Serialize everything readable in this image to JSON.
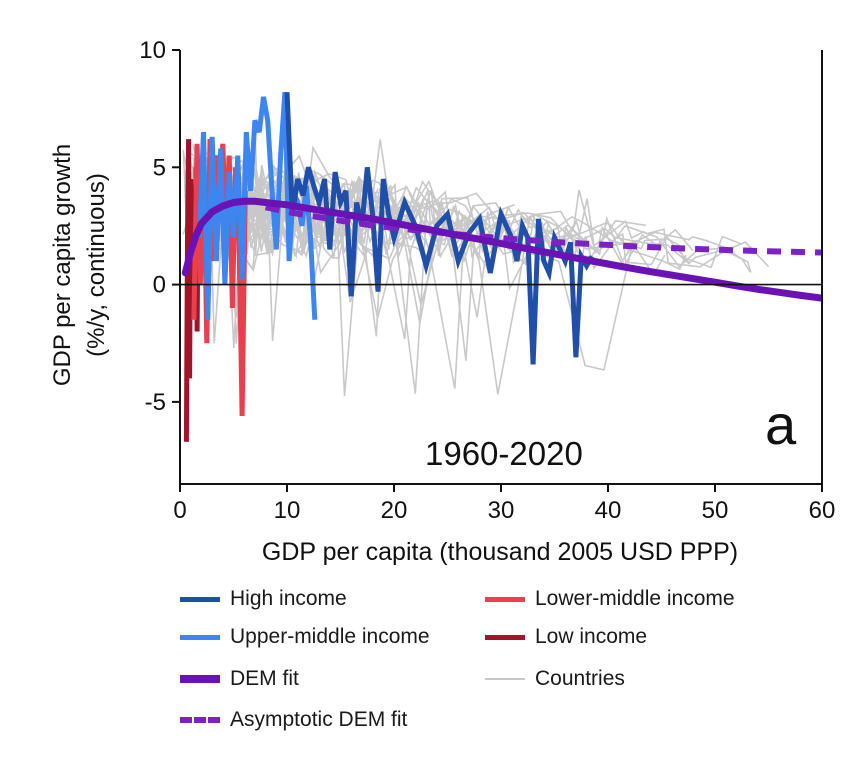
{
  "chart_data": {
    "type": "line",
    "title": "",
    "panel_label": "a",
    "period_label": "1960-2020",
    "xlabel": "GDP per capita (thousand 2005 USD PPP)",
    "ylabel": "GDP per capita growth",
    "ylabel_sub": "(%/y, continuous)",
    "xlim": [
      0,
      60
    ],
    "ylim": [
      -8.5,
      10
    ],
    "xticks": [
      0,
      10,
      20,
      30,
      40,
      50,
      60
    ],
    "yticks": [
      -5,
      0,
      5,
      10
    ],
    "xtick_labels": [
      "0",
      "10",
      "20",
      "30",
      "40",
      "50",
      "60"
    ],
    "ytick_labels": [
      "-5",
      "0",
      "5",
      "10"
    ],
    "grid": false,
    "zero_line": true,
    "legend_position": "below",
    "colors": {
      "high": "#1f4fa8",
      "upper_middle": "#3d86ef",
      "lower_middle": "#e8404e",
      "low": "#a01528",
      "dem": "#6a12b4",
      "asymptotic": "#7a22c2",
      "countries": "#c8c8c8"
    },
    "legend": [
      {
        "key": "high",
        "label": "High income",
        "style": "solid"
      },
      {
        "key": "lower_middle",
        "label": "Lower-middle income",
        "style": "solid"
      },
      {
        "key": "upper_middle",
        "label": "Upper-middle income",
        "style": "solid"
      },
      {
        "key": "low",
        "label": "Low income",
        "style": "solid"
      },
      {
        "key": "dem",
        "label": "DEM fit",
        "style": "thick"
      },
      {
        "key": "countries",
        "label": "Countries",
        "style": "thin"
      },
      {
        "key": "asymptotic",
        "label": "Asymptotic DEM fit",
        "style": "dashed"
      }
    ],
    "series": [
      {
        "name": "Low income",
        "key": "low",
        "x": [
          0.6,
          0.7,
          0.8,
          0.9,
          1.0,
          1.1,
          1.2,
          1.3,
          1.4,
          1.5,
          1.6,
          1.7
        ],
        "y": [
          -6.7,
          2.0,
          6.2,
          -4.0,
          4.5,
          1.5,
          -1.0,
          3.5,
          0.5,
          5.0,
          -2.0,
          4.0
        ]
      },
      {
        "name": "Lower-middle income",
        "key": "lower_middle",
        "x": [
          1.3,
          1.6,
          1.9,
          2.2,
          2.5,
          2.8,
          3.1,
          3.4,
          3.7,
          4.0,
          4.3,
          4.6,
          4.9,
          5.2,
          5.5,
          5.8,
          6.1
        ],
        "y": [
          -1.5,
          6.0,
          0.0,
          5.8,
          -2.5,
          6.2,
          1.0,
          5.5,
          3.5,
          6.0,
          2.0,
          5.5,
          -1.0,
          5.0,
          2.5,
          -5.6,
          4.0
        ]
      },
      {
        "name": "Upper-middle income",
        "key": "upper_middle",
        "x": [
          1.8,
          2.2,
          2.6,
          3.0,
          3.4,
          3.8,
          4.2,
          4.6,
          5.0,
          5.4,
          5.8,
          6.2,
          6.6,
          7.0,
          7.4,
          7.8,
          8.2,
          8.6,
          9.0,
          9.4,
          9.8,
          10.2,
          10.6,
          11.0,
          11.4,
          11.8,
          12.2,
          12.6
        ],
        "y": [
          2.0,
          6.5,
          -1.5,
          6.3,
          1.0,
          5.8,
          0.0,
          4.8,
          2.0,
          5.5,
          0.2,
          6.5,
          4.0,
          7.0,
          6.5,
          8.0,
          7.0,
          4.0,
          1.5,
          5.5,
          8.2,
          1.0,
          4.0,
          3.5,
          2.5,
          4.2,
          2.0,
          -1.5
        ]
      },
      {
        "name": "High income",
        "key": "high",
        "x": [
          10.0,
          10.5,
          11.0,
          11.5,
          12.0,
          12.5,
          13.0,
          13.5,
          14.0,
          14.5,
          15.0,
          15.5,
          16.0,
          16.5,
          17.0,
          17.5,
          18.0,
          18.5,
          19.0,
          19.5,
          20.0,
          21.0,
          22.0,
          23.0,
          24.0,
          25.0,
          26.0,
          27.0,
          28.0,
          29.0,
          30.0,
          31.0,
          31.5,
          32.0,
          32.5,
          33.0,
          33.5,
          34.0,
          34.5,
          35.0,
          35.5,
          36.0,
          36.5,
          37.0,
          37.5,
          38.0,
          38.5
        ],
        "y": [
          8.2,
          3.0,
          4.5,
          3.8,
          5.0,
          4.2,
          3.5,
          4.5,
          1.5,
          4.8,
          3.5,
          4.0,
          -0.5,
          3.5,
          2.5,
          5.0,
          3.0,
          -0.3,
          4.5,
          3.0,
          2.0,
          3.5,
          2.5,
          0.8,
          2.5,
          3.0,
          1.0,
          2.2,
          2.8,
          0.5,
          3.0,
          2.0,
          1.0,
          2.5,
          2.0,
          -3.4,
          2.8,
          1.0,
          0.5,
          2.0,
          1.5,
          1.0,
          1.8,
          -3.1,
          1.2,
          0.8,
          1.2
        ]
      }
    ],
    "dem_fit": {
      "x": [
        0.5,
        1,
        1.5,
        2,
        3,
        4,
        5,
        6,
        7,
        8,
        9,
        10,
        12,
        14,
        16,
        18,
        20,
        22,
        24,
        26,
        28,
        30,
        32,
        34,
        36,
        38,
        40,
        42,
        44,
        46,
        48,
        50,
        52,
        54,
        56,
        58,
        60
      ],
      "y": [
        0.5,
        1.4,
        2.1,
        2.6,
        3.1,
        3.35,
        3.5,
        3.55,
        3.55,
        3.5,
        3.45,
        3.4,
        3.25,
        3.1,
        2.95,
        2.8,
        2.62,
        2.45,
        2.28,
        2.1,
        1.93,
        1.75,
        1.57,
        1.4,
        1.22,
        1.05,
        0.88,
        0.71,
        0.55,
        0.4,
        0.25,
        0.1,
        -0.05,
        -0.2,
        -0.33,
        -0.46,
        -0.58
      ]
    },
    "asymptotic_fit": {
      "x": [
        8,
        10,
        12,
        14,
        16,
        18,
        20,
        22,
        24,
        26,
        28,
        30,
        32,
        34,
        36,
        38,
        40,
        42,
        44,
        46,
        48,
        50,
        52,
        54,
        56,
        58,
        60
      ],
      "y": [
        3.3,
        3.1,
        2.95,
        2.8,
        2.65,
        2.52,
        2.42,
        2.32,
        2.23,
        2.14,
        2.06,
        1.98,
        1.91,
        1.85,
        1.79,
        1.74,
        1.69,
        1.64,
        1.6,
        1.56,
        1.52,
        1.49,
        1.46,
        1.43,
        1.41,
        1.39,
        1.37
      ]
    }
  }
}
